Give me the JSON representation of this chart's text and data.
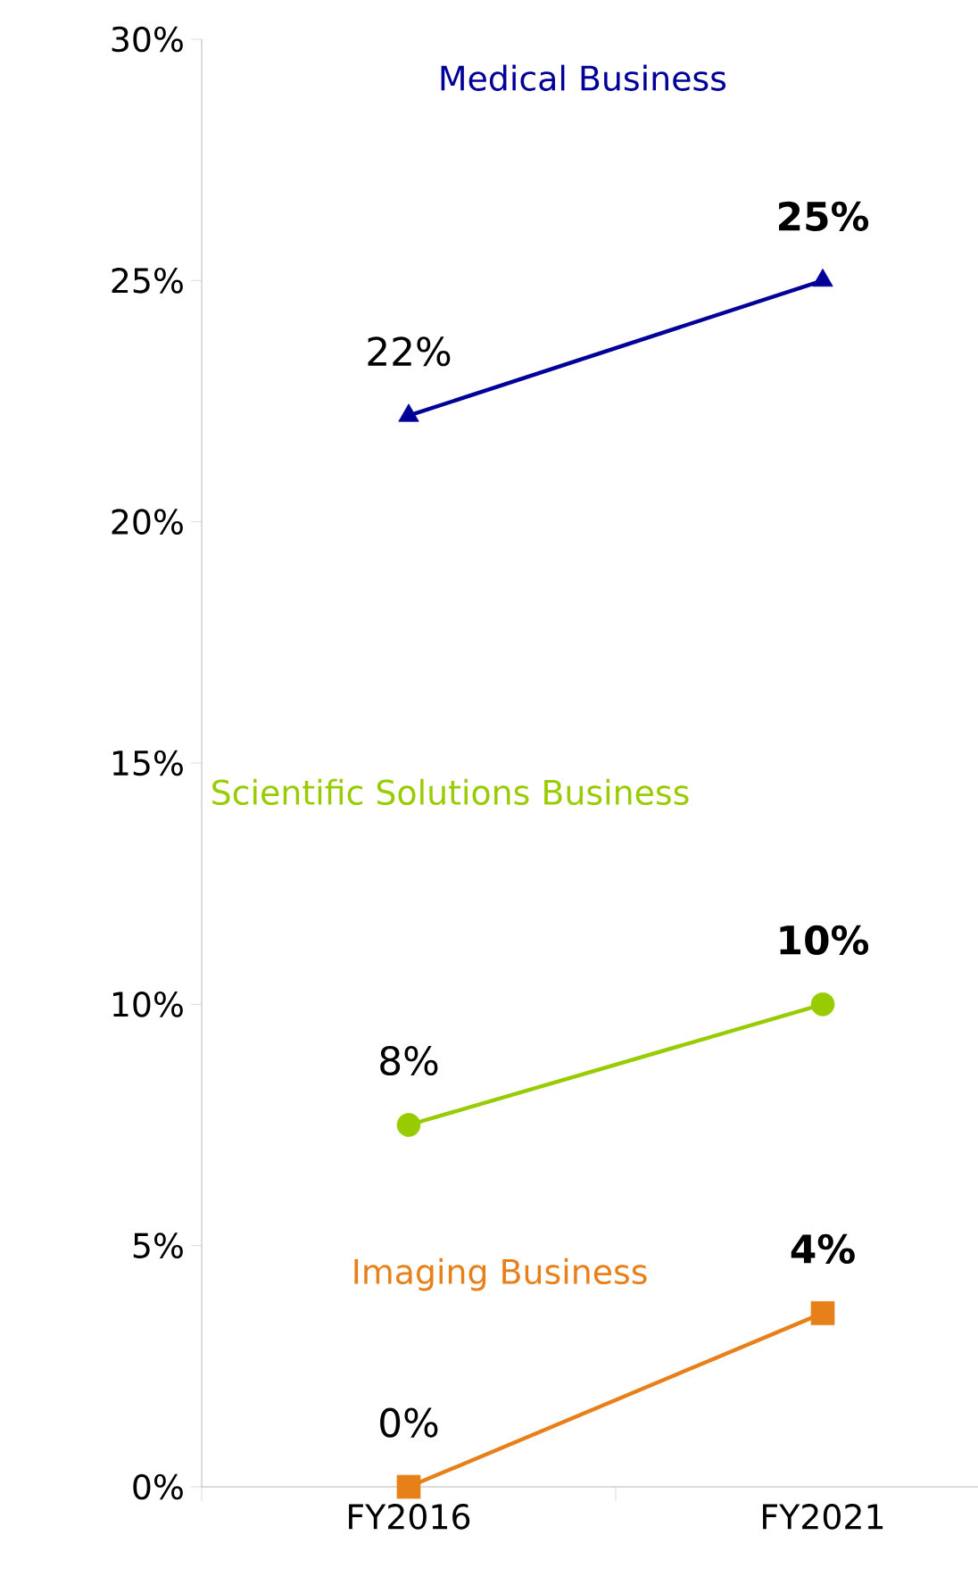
{
  "chart_data": {
    "type": "line",
    "categories": [
      "FY2016",
      "FY2021"
    ],
    "ylim": [
      0,
      30
    ],
    "yticks": [
      {
        "value": 0,
        "label": "0%"
      },
      {
        "value": 5,
        "label": "5%"
      },
      {
        "value": 10,
        "label": "10%"
      },
      {
        "value": 15,
        "label": "15%"
      },
      {
        "value": 20,
        "label": "20%"
      },
      {
        "value": 25,
        "label": "25%"
      },
      {
        "value": 30,
        "label": "30%"
      }
    ],
    "legend": false,
    "grid": false,
    "series": [
      {
        "name": "Medical Business",
        "color": "#000099",
        "marker": "triangle",
        "values": [
          22.2,
          25
        ],
        "value_labels": [
          "22%",
          "**25%**"
        ]
      },
      {
        "name": "Scientific Solutions Business",
        "color": "#99cc00",
        "marker": "circle",
        "values": [
          7.5,
          10
        ],
        "value_labels": [
          "8%",
          "**10%**"
        ]
      },
      {
        "name": "Imaging Business",
        "color": "#e8801a",
        "marker": "square",
        "values": [
          0,
          3.6
        ],
        "value_labels": [
          "0%",
          "**4%**"
        ]
      }
    ]
  }
}
